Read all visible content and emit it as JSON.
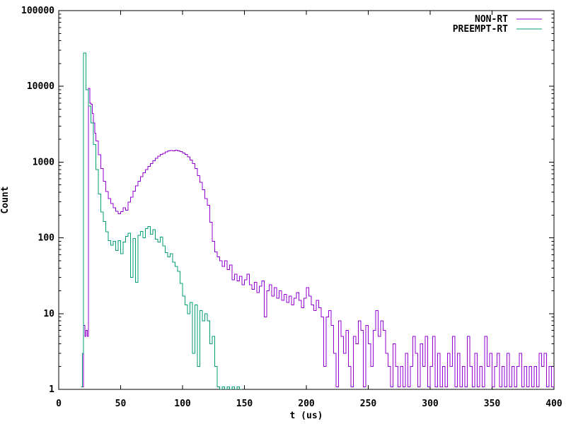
{
  "chart_data": {
    "type": "line",
    "subtype": "step-histogram",
    "title": "",
    "xlabel": "t (us)",
    "ylabel": "Count",
    "xlim": [
      0,
      400
    ],
    "ylim": [
      1,
      100000
    ],
    "ylog": true,
    "grid": false,
    "legend_position": "top-right",
    "background_color": "#ffffff",
    "axis_color": "#000000",
    "x_ticks": [
      0,
      50,
      100,
      150,
      200,
      250,
      300,
      350,
      400
    ],
    "y_ticks": [
      1,
      10,
      100,
      1000,
      10000,
      100000
    ],
    "y_minor_ticks_per_decade": [
      2,
      3,
      4,
      5,
      6,
      7,
      8,
      9
    ],
    "series": [
      {
        "name": "NON-RT",
        "color": "#9400d3",
        "bin_width_us": 2,
        "points": [
          [
            19,
            1
          ],
          [
            20,
            7
          ],
          [
            21,
            5
          ],
          [
            22,
            6
          ],
          [
            23,
            5
          ],
          [
            24,
            9400
          ],
          [
            25,
            6000
          ],
          [
            26,
            5800
          ],
          [
            27,
            4400
          ],
          [
            28,
            3300
          ],
          [
            29,
            2400
          ],
          [
            30,
            1900
          ],
          [
            32,
            1250
          ],
          [
            34,
            820
          ],
          [
            36,
            560
          ],
          [
            38,
            410
          ],
          [
            40,
            330
          ],
          [
            42,
            285
          ],
          [
            44,
            250
          ],
          [
            46,
            225
          ],
          [
            48,
            208
          ],
          [
            50,
            222
          ],
          [
            52,
            250
          ],
          [
            54,
            232
          ],
          [
            56,
            295
          ],
          [
            58,
            345
          ],
          [
            60,
            415
          ],
          [
            62,
            485
          ],
          [
            64,
            560
          ],
          [
            66,
            640
          ],
          [
            68,
            720
          ],
          [
            70,
            800
          ],
          [
            72,
            880
          ],
          [
            74,
            960
          ],
          [
            76,
            1040
          ],
          [
            78,
            1120
          ],
          [
            80,
            1200
          ],
          [
            82,
            1260
          ],
          [
            84,
            1310
          ],
          [
            86,
            1360
          ],
          [
            88,
            1400
          ],
          [
            90,
            1430
          ],
          [
            92,
            1400
          ],
          [
            94,
            1440
          ],
          [
            96,
            1400
          ],
          [
            98,
            1370
          ],
          [
            100,
            1320
          ],
          [
            102,
            1260
          ],
          [
            104,
            1170
          ],
          [
            106,
            1070
          ],
          [
            108,
            960
          ],
          [
            110,
            820
          ],
          [
            112,
            660
          ],
          [
            114,
            540
          ],
          [
            116,
            430
          ],
          [
            118,
            330
          ],
          [
            120,
            270
          ],
          [
            122,
            160
          ],
          [
            124,
            90
          ],
          [
            126,
            65
          ],
          [
            128,
            56
          ],
          [
            130,
            50
          ],
          [
            132,
            42
          ],
          [
            134,
            50
          ],
          [
            136,
            38
          ],
          [
            138,
            44
          ],
          [
            140,
            28
          ],
          [
            142,
            33
          ],
          [
            144,
            27
          ],
          [
            146,
            31
          ],
          [
            148,
            24
          ],
          [
            150,
            28
          ],
          [
            152,
            33
          ],
          [
            154,
            24
          ],
          [
            156,
            21
          ],
          [
            158,
            26
          ],
          [
            160,
            19
          ],
          [
            162,
            23
          ],
          [
            164,
            27
          ],
          [
            166,
            9
          ],
          [
            168,
            20
          ],
          [
            170,
            24
          ],
          [
            172,
            17
          ],
          [
            174,
            22
          ],
          [
            176,
            16
          ],
          [
            178,
            20
          ],
          [
            180,
            15
          ],
          [
            182,
            18
          ],
          [
            184,
            14
          ],
          [
            186,
            17
          ],
          [
            188,
            13
          ],
          [
            190,
            16
          ],
          [
            192,
            19
          ],
          [
            194,
            15
          ],
          [
            196,
            12
          ],
          [
            198,
            16
          ],
          [
            200,
            22
          ],
          [
            202,
            17
          ],
          [
            204,
            13
          ],
          [
            206,
            11
          ],
          [
            208,
            15
          ],
          [
            210,
            12
          ],
          [
            212,
            9
          ],
          [
            214,
            2
          ],
          [
            216,
            9
          ],
          [
            218,
            11
          ],
          [
            220,
            7
          ],
          [
            222,
            3
          ],
          [
            224,
            1
          ],
          [
            226,
            8
          ],
          [
            228,
            5
          ],
          [
            230,
            3
          ],
          [
            232,
            6
          ],
          [
            234,
            2
          ],
          [
            236,
            1
          ],
          [
            238,
            5
          ],
          [
            240,
            4
          ],
          [
            242,
            8
          ],
          [
            244,
            6
          ],
          [
            246,
            1
          ],
          [
            248,
            7
          ],
          [
            250,
            4
          ],
          [
            252,
            2
          ],
          [
            254,
            6
          ],
          [
            256,
            11
          ],
          [
            258,
            5
          ],
          [
            260,
            8
          ],
          [
            262,
            6
          ],
          [
            264,
            3
          ],
          [
            266,
            2
          ],
          [
            268,
            1
          ],
          [
            270,
            4
          ],
          [
            272,
            2
          ],
          [
            274,
            1
          ],
          [
            276,
            2
          ],
          [
            278,
            1
          ],
          [
            280,
            3
          ],
          [
            282,
            1
          ],
          [
            284,
            2
          ],
          [
            286,
            5
          ],
          [
            288,
            3
          ],
          [
            290,
            1
          ],
          [
            292,
            4
          ],
          [
            294,
            2
          ],
          [
            296,
            5
          ],
          [
            298,
            1
          ],
          [
            300,
            2
          ],
          [
            302,
            5
          ],
          [
            304,
            1
          ],
          [
            306,
            3
          ],
          [
            308,
            1
          ],
          [
            310,
            2
          ],
          [
            312,
            1
          ],
          [
            314,
            3
          ],
          [
            316,
            2
          ],
          [
            318,
            5
          ],
          [
            320,
            1
          ],
          [
            322,
            3
          ],
          [
            324,
            1
          ],
          [
            326,
            2
          ],
          [
            328,
            1
          ],
          [
            330,
            5
          ],
          [
            332,
            2
          ],
          [
            334,
            1
          ],
          [
            336,
            3
          ],
          [
            338,
            1
          ],
          [
            340,
            2
          ],
          [
            342,
            1
          ],
          [
            344,
            5
          ],
          [
            346,
            2
          ],
          [
            348,
            3
          ],
          [
            350,
            1
          ],
          [
            352,
            2
          ],
          [
            354,
            3
          ],
          [
            356,
            1
          ],
          [
            358,
            2
          ],
          [
            360,
            1
          ],
          [
            362,
            3
          ],
          [
            364,
            1
          ],
          [
            366,
            2
          ],
          [
            368,
            1
          ],
          [
            370,
            2
          ],
          [
            372,
            3
          ],
          [
            374,
            1
          ],
          [
            376,
            2
          ],
          [
            378,
            1
          ],
          [
            380,
            2
          ],
          [
            382,
            1
          ],
          [
            384,
            2
          ],
          [
            386,
            1
          ],
          [
            388,
            3
          ],
          [
            390,
            2
          ],
          [
            392,
            3
          ],
          [
            394,
            1
          ],
          [
            396,
            2
          ],
          [
            398,
            1
          ],
          [
            400,
            2
          ]
        ]
      },
      {
        "name": "PREEMPT-RT",
        "color": "#009e73",
        "bin_width_us": 2,
        "points": [
          [
            18,
            1
          ],
          [
            19,
            3
          ],
          [
            20,
            27500
          ],
          [
            22,
            9000
          ],
          [
            24,
            5500
          ],
          [
            26,
            3300
          ],
          [
            28,
            1700
          ],
          [
            30,
            800
          ],
          [
            32,
            380
          ],
          [
            34,
            220
          ],
          [
            36,
            165
          ],
          [
            38,
            120
          ],
          [
            40,
            92
          ],
          [
            42,
            80
          ],
          [
            44,
            90
          ],
          [
            46,
            68
          ],
          [
            48,
            92
          ],
          [
            50,
            62
          ],
          [
            52,
            88
          ],
          [
            54,
            105
          ],
          [
            56,
            115
          ],
          [
            58,
            30
          ],
          [
            60,
            98
          ],
          [
            62,
            26
          ],
          [
            64,
            108
          ],
          [
            66,
            122
          ],
          [
            68,
            100
          ],
          [
            70,
            132
          ],
          [
            72,
            142
          ],
          [
            74,
            112
          ],
          [
            76,
            128
          ],
          [
            78,
            96
          ],
          [
            80,
            88
          ],
          [
            82,
            102
          ],
          [
            84,
            78
          ],
          [
            86,
            64
          ],
          [
            88,
            56
          ],
          [
            90,
            62
          ],
          [
            92,
            48
          ],
          [
            94,
            42
          ],
          [
            96,
            36
          ],
          [
            98,
            25
          ],
          [
            100,
            17
          ],
          [
            102,
            13
          ],
          [
            104,
            10
          ],
          [
            106,
            14
          ],
          [
            108,
            3
          ],
          [
            110,
            13
          ],
          [
            112,
            2
          ],
          [
            114,
            11
          ],
          [
            116,
            8
          ],
          [
            118,
            10
          ],
          [
            120,
            8
          ],
          [
            122,
            4
          ],
          [
            124,
            5
          ],
          [
            126,
            2
          ],
          [
            128,
            1
          ],
          [
            130,
            0
          ],
          [
            132,
            1
          ],
          [
            134,
            0
          ],
          [
            136,
            1
          ],
          [
            138,
            0
          ],
          [
            140,
            1
          ],
          [
            142,
            0
          ],
          [
            144,
            1
          ],
          [
            146,
            0
          ]
        ]
      }
    ]
  }
}
